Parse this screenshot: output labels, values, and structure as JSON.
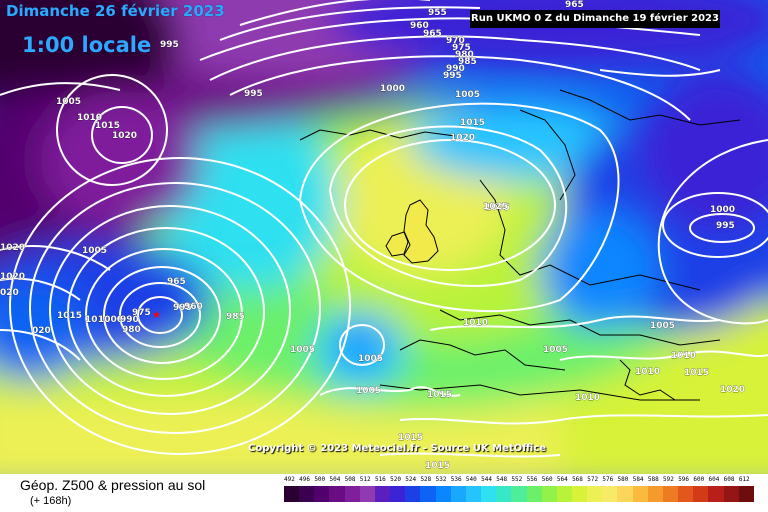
{
  "header": {
    "date": "Dimanche 26 février 2023",
    "time": "1:00 locale",
    "run": "Run UKMO 0 Z du Dimanche 19 février 2023"
  },
  "copyright": "Copyright © 2023 Meteociel.fr - Source UK MetOffice",
  "footer": {
    "title": "Géop. Z500 & pression au sol",
    "subtitle": "(+ 168h)"
  },
  "scale": {
    "labels": [
      "492",
      "496",
      "500",
      "504",
      "508",
      "512",
      "516",
      "520",
      "524",
      "528",
      "532",
      "536",
      "540",
      "544",
      "548",
      "552",
      "556",
      "560",
      "564",
      "568",
      "572",
      "576",
      "580",
      "584",
      "588",
      "592",
      "596",
      "600",
      "604",
      "608",
      "612"
    ],
    "colors": [
      "#2a0033",
      "#3c0050",
      "#52006e",
      "#6a0d84",
      "#7f1f9c",
      "#8f3ab0",
      "#5b1fbf",
      "#3a24d6",
      "#1c3fe6",
      "#0d63f3",
      "#0a86ff",
      "#1aa8ff",
      "#25c4ff",
      "#2ee0f0",
      "#37e8c8",
      "#4ded9a",
      "#6cf06a",
      "#93f24a",
      "#b9f23a",
      "#d7f238",
      "#ecf055",
      "#f7ea66",
      "#fbd65a",
      "#f9ba3e",
      "#f59a2c",
      "#ee7a22",
      "#e3571c",
      "#d23a18",
      "#b81f18",
      "#951414",
      "#6e0d0d"
    ]
  },
  "isobars": [
    "955",
    "960",
    "965",
    "970",
    "975",
    "980",
    "985",
    "990",
    "995",
    "1000",
    "1005",
    "1010",
    "1015",
    "1020",
    "1025"
  ],
  "map_labels": [
    {
      "t": "955"
    },
    {
      "t": "960"
    },
    {
      "t": "965"
    },
    {
      "t": "970"
    },
    {
      "t": "975"
    },
    {
      "t": "980"
    },
    {
      "t": "985"
    },
    {
      "t": "990"
    },
    {
      "t": "995"
    },
    {
      "t": "995"
    },
    {
      "t": "995"
    },
    {
      "t": "1000"
    },
    {
      "t": "1005"
    },
    {
      "t": "1005"
    },
    {
      "t": "1015"
    },
    {
      "t": "1020"
    },
    {
      "t": "1005"
    },
    {
      "t": "1010"
    },
    {
      "t": "1015"
    },
    {
      "t": "1020"
    },
    {
      "t": "1025"
    },
    {
      "t": "1000"
    },
    {
      "t": "995"
    },
    {
      "t": "1005"
    },
    {
      "t": "1020"
    },
    {
      "t": "1020"
    },
    {
      "t": "020"
    },
    {
      "t": "020"
    },
    {
      "t": "1015"
    },
    {
      "t": "1010"
    },
    {
      "t": "1000"
    },
    {
      "t": "990"
    },
    {
      "t": "980"
    },
    {
      "t": "975"
    },
    {
      "t": "965"
    },
    {
      "t": "995"
    },
    {
      "t": "960"
    },
    {
      "t": "985"
    },
    {
      "t": "1005"
    },
    {
      "t": "1005"
    },
    {
      "t": "1010"
    },
    {
      "t": "1005"
    },
    {
      "t": "1005"
    },
    {
      "t": "1015"
    },
    {
      "t": "1010"
    },
    {
      "t": "1005"
    },
    {
      "t": "1010"
    },
    {
      "t": "1010"
    },
    {
      "t": "1015"
    },
    {
      "t": "1020"
    },
    {
      "t": "1015"
    },
    {
      "t": "1015"
    },
    {
      "t": "965"
    }
  ]
}
